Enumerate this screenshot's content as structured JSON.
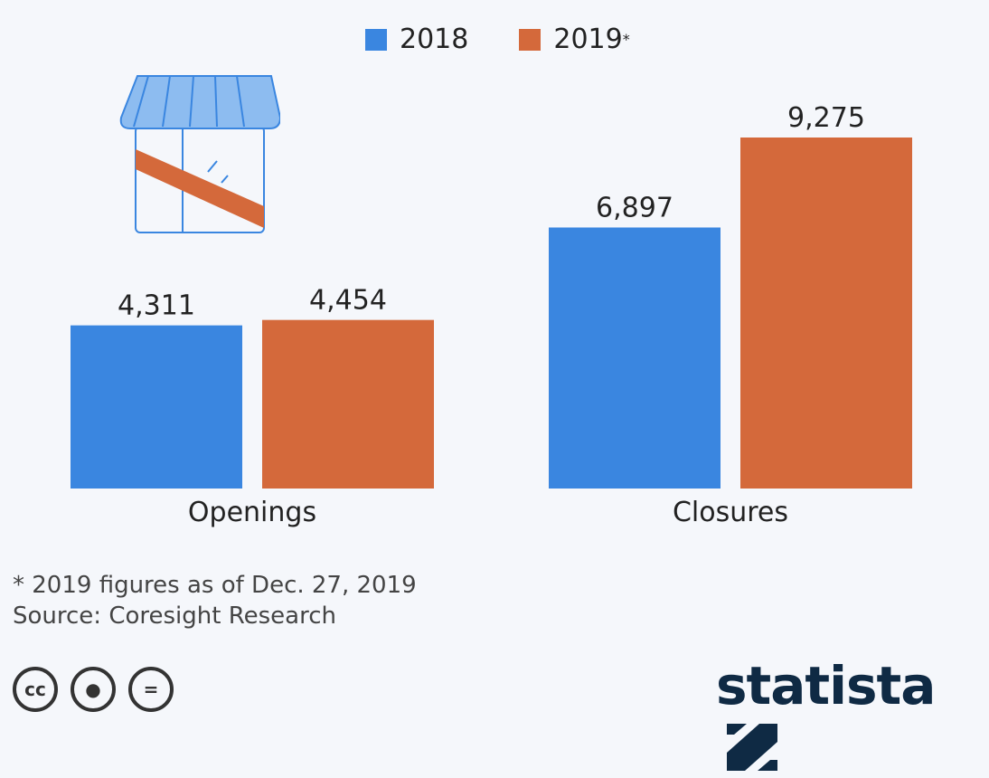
{
  "chart_data": {
    "type": "bar",
    "categories": [
      "Openings",
      "Closures"
    ],
    "series": [
      {
        "name": "2018",
        "values": [
          4311,
          6897
        ],
        "labels": [
          "4,311",
          "6,897"
        ],
        "color": "#3a86e0"
      },
      {
        "name": "2019",
        "values": [
          4454,
          9275
        ],
        "labels": [
          "4,454",
          "9,275"
        ],
        "color": "#d4693b"
      }
    ],
    "legend": {
      "position": "top",
      "items": [
        "2018",
        "2019"
      ],
      "note_mark": "*"
    },
    "ylim": [
      0,
      9275
    ],
    "grid": false
  },
  "footer": {
    "note": "* 2019 figures as of Dec. 27, 2019",
    "source": "Source: Coresight Research",
    "logo": "statista",
    "license_icons": [
      "cc",
      "by",
      "nd"
    ]
  }
}
